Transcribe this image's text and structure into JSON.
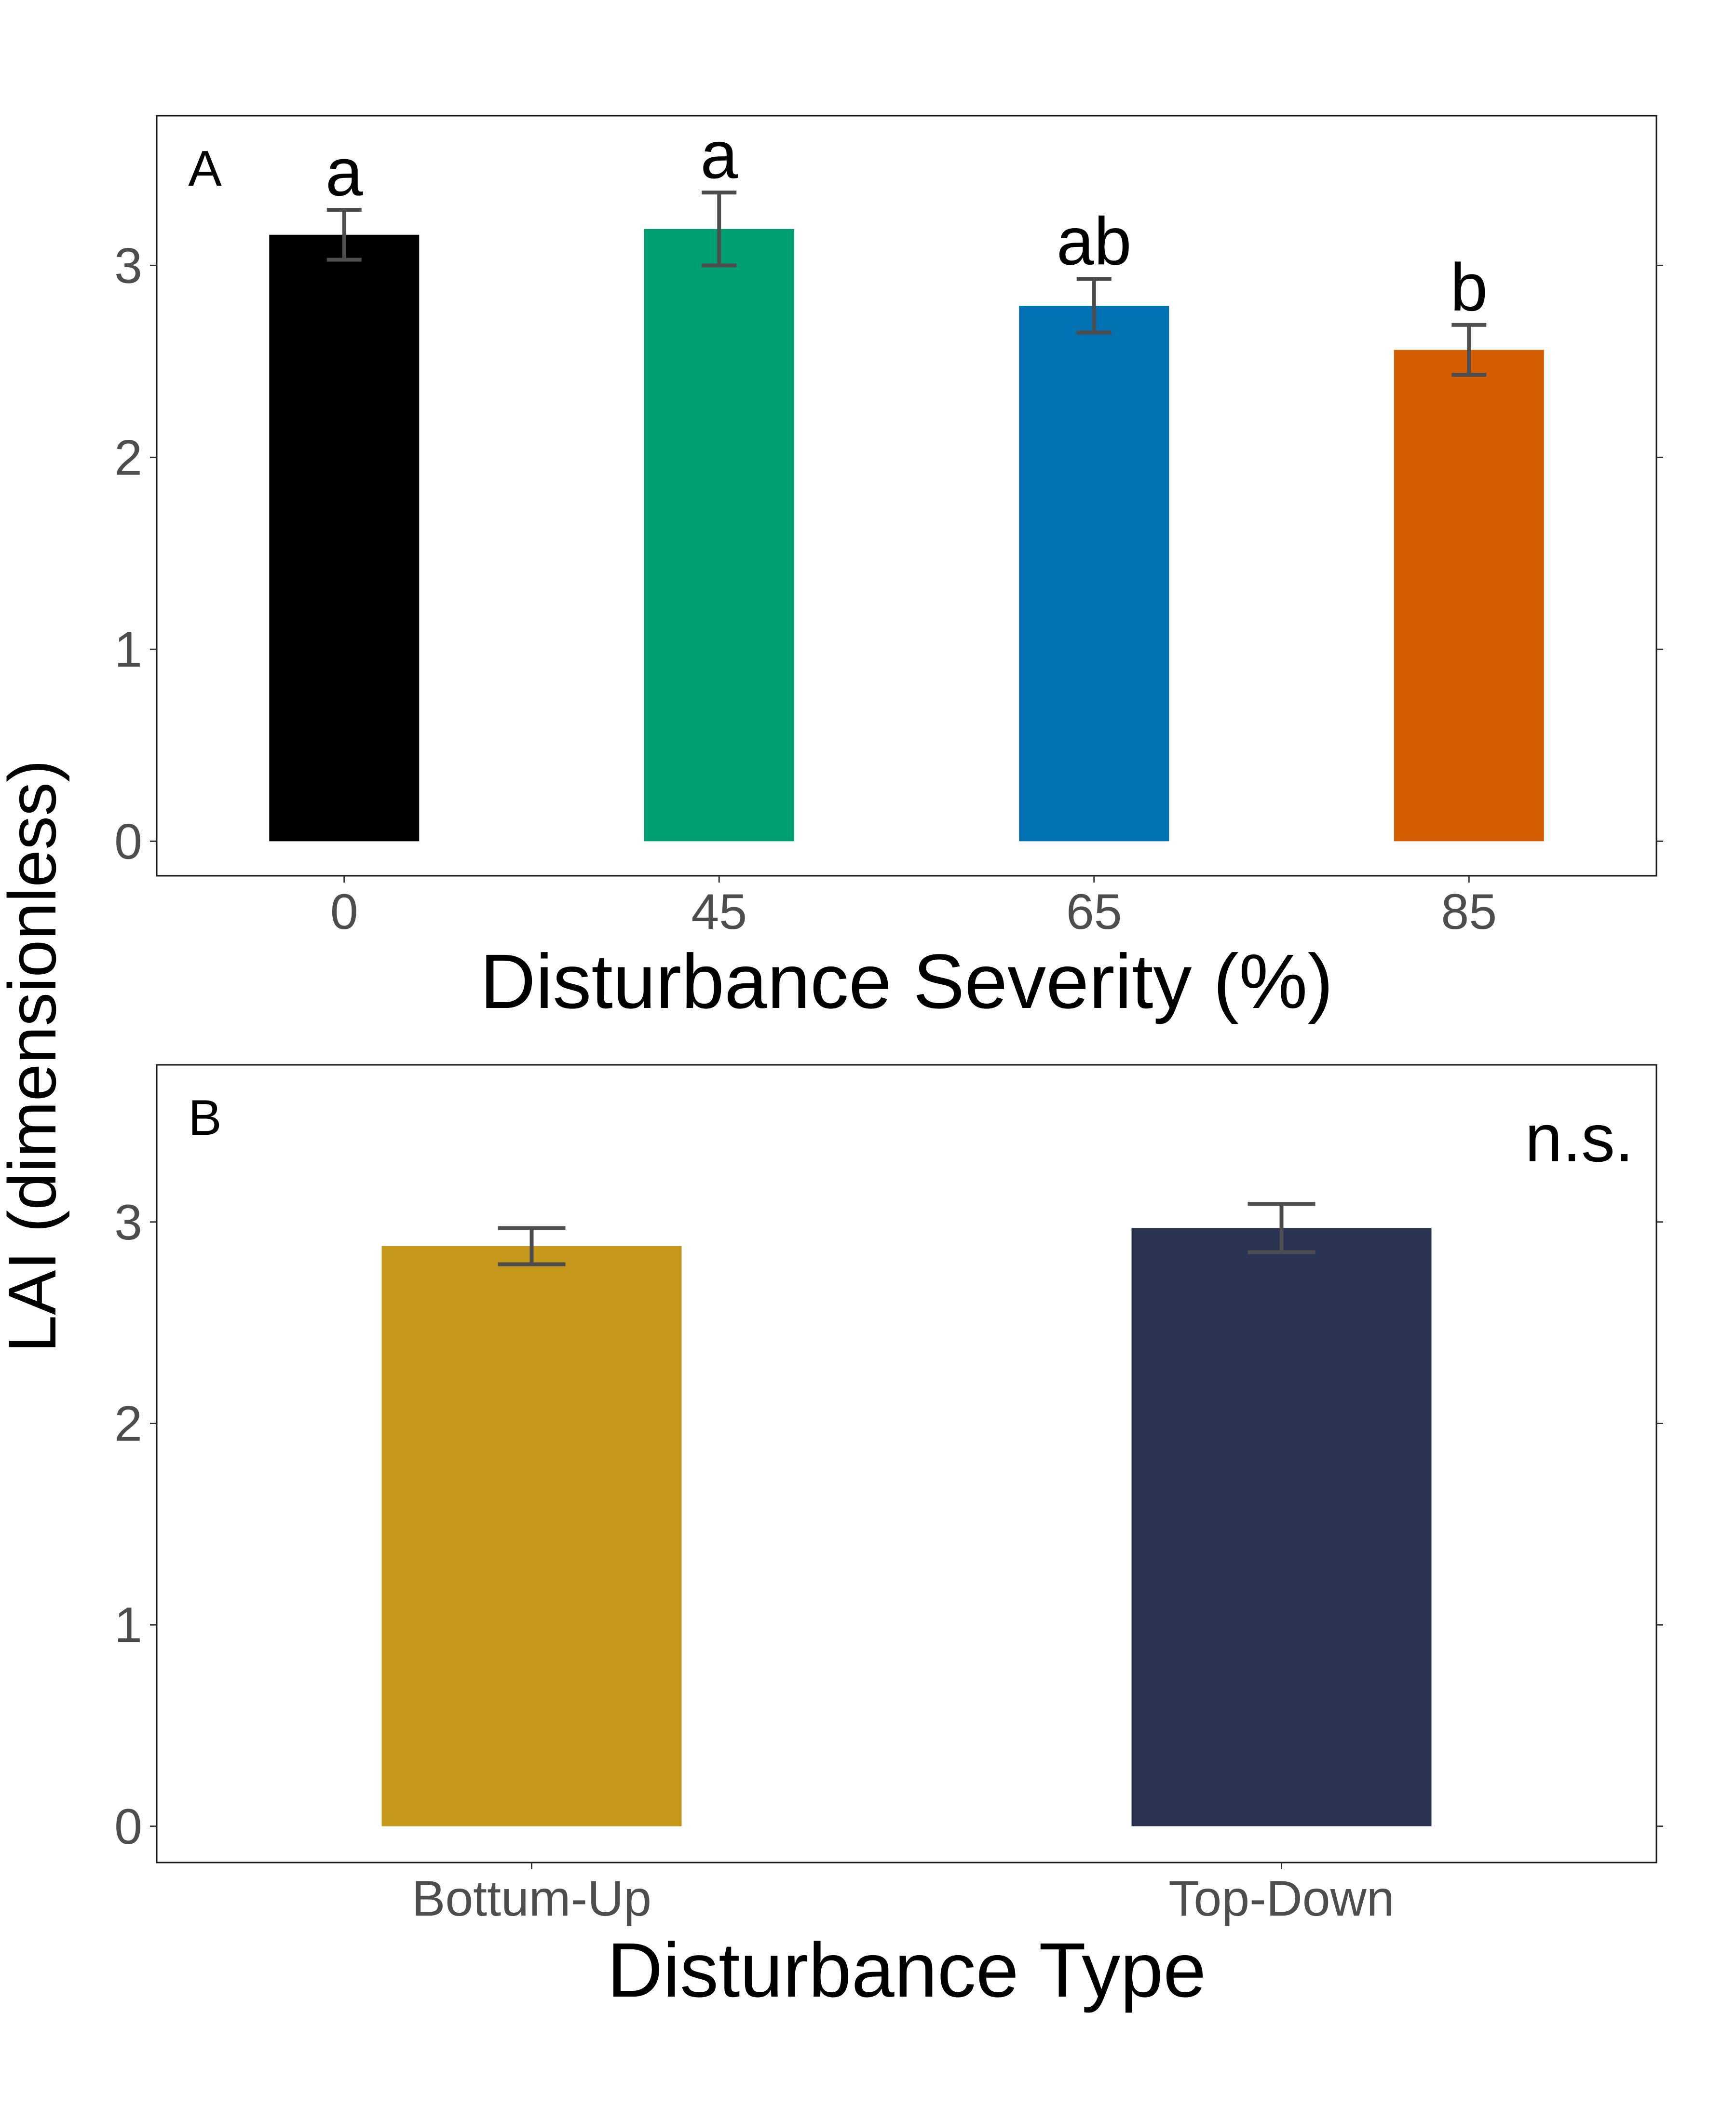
{
  "shared_ylabel": "LAI (dimensionless)",
  "chart_data": [
    {
      "type": "bar",
      "panel_label": "A",
      "xlabel": "Disturbance Severity (%)",
      "ylabel": "LAI (dimensionless)",
      "categories": [
        "0",
        "45",
        "65",
        "85"
      ],
      "values": [
        3.16,
        3.19,
        2.79,
        2.56
      ],
      "error_low": [
        3.03,
        3.0,
        2.65,
        2.43
      ],
      "error_high": [
        3.29,
        3.38,
        2.93,
        2.69
      ],
      "colors": [
        "#000000",
        "#009E73",
        "#0072B2",
        "#D55E00"
      ],
      "significance_letters": [
        "a",
        "a",
        "ab",
        "b"
      ],
      "ylim": [
        -0.18,
        3.78
      ],
      "yticks": [
        0,
        1,
        2,
        3
      ],
      "grid": false
    },
    {
      "type": "bar",
      "panel_label": "B",
      "xlabel": "Disturbance Type",
      "ylabel": "LAI (dimensionless)",
      "categories": [
        "Bottum-Up",
        "Top-Down"
      ],
      "values": [
        2.88,
        2.97
      ],
      "error_low": [
        2.79,
        2.85
      ],
      "error_high": [
        2.97,
        3.09
      ],
      "colors": [
        "#C4961A",
        "#293352"
      ],
      "annotation": "n.s.",
      "ylim": [
        -0.18,
        3.78
      ],
      "yticks": [
        0,
        1,
        2,
        3
      ],
      "grid": false
    }
  ]
}
